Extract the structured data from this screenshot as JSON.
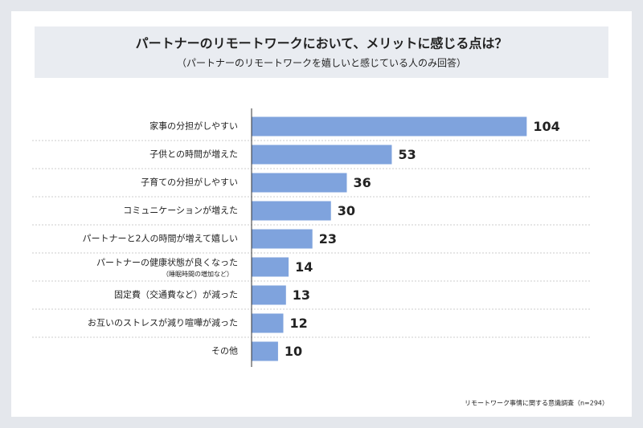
{
  "chart_data": {
    "type": "bar",
    "orientation": "horizontal",
    "title": "パートナーのリモートワークにおいて、メリットに感じる点は？",
    "subtitle": "（パートナーのリモートワークを嬉しいと感じている人のみ回答）",
    "categories": [
      "家事の分担がしやすい",
      "子供との時間が増えた",
      "子育ての分担がしやすい",
      "コミュニケーションが増えた",
      "パートナーと2人の時間が増えて嬉しい",
      [
        "パートナーの健康状態が良くなった",
        "（睡眠時間の増加など）"
      ],
      "固定費（交通費など）が減った",
      "お互いのストレスが減り喧嘩が減った",
      "その他"
    ],
    "values": [
      104,
      53,
      36,
      30,
      23,
      14,
      13,
      12,
      10
    ],
    "color": "#7fa3dd",
    "xlim": [
      0,
      120
    ],
    "source": "リモートワーク事情に関する意識調査（n=294）"
  }
}
